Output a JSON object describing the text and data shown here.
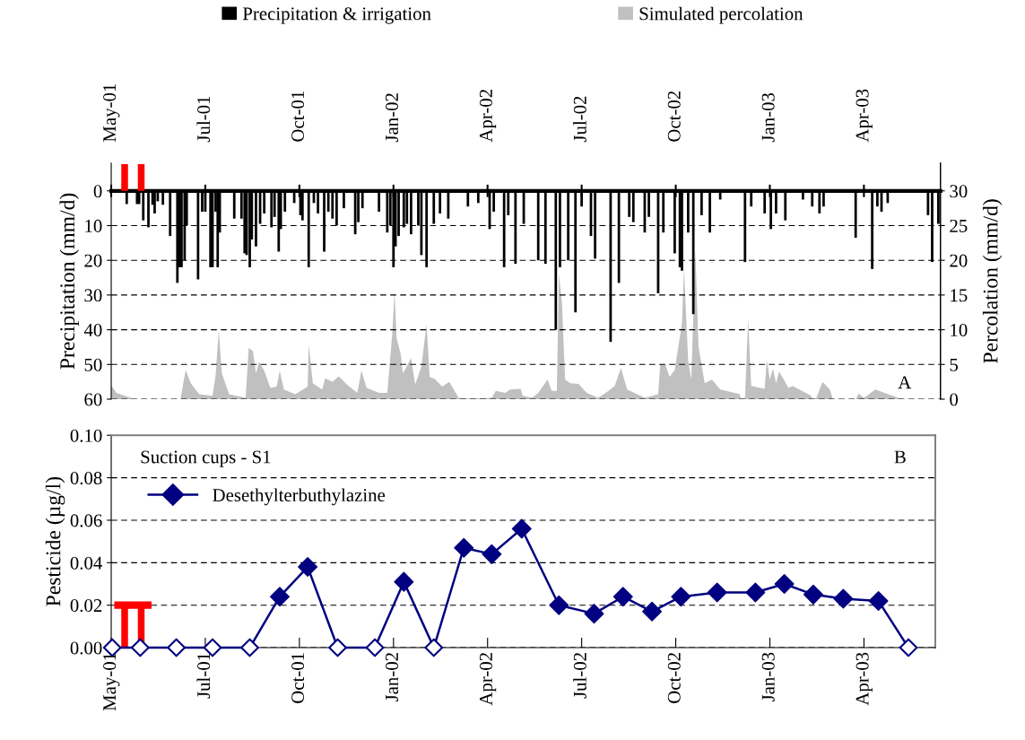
{
  "chart_data": [
    {
      "type": "bar",
      "ylabel": "Precipitation (mm/d)",
      "y2label": "Percolation (mm/d)",
      "annotations": [
        "A"
      ],
      "legend": "top",
      "grid": "y",
      "xlim": [
        "2001-05-01",
        "2003-07-12"
      ],
      "ylim": [
        60,
        -8
      ],
      "y2lim": [
        0,
        34
      ],
      "xticks": [
        {
          "value": "2001-05-01",
          "label": "May-01"
        },
        {
          "value": "2001-07-31",
          "label": "Jul-01"
        },
        {
          "value": "2001-10-30",
          "label": "Oct-01"
        },
        {
          "value": "2002-01-29",
          "label": "Jan-02"
        },
        {
          "value": "2002-04-30",
          "label": "Apr-02"
        },
        {
          "value": "2002-07-30",
          "label": "Jul-02"
        },
        {
          "value": "2002-10-29",
          "label": "Oct-02"
        },
        {
          "value": "2003-01-28",
          "label": "Jan-03"
        },
        {
          "value": "2003-04-29",
          "label": "Apr-03"
        }
      ],
      "yticks": [
        0,
        10,
        20,
        30,
        40,
        50,
        60
      ],
      "y2ticks": [
        0,
        5,
        10,
        15,
        20,
        25,
        30
      ],
      "series": [
        {
          "name": "Precipitation & irrigation",
          "color": "#000000",
          "x": [
            "2001-05-16",
            "2001-05-26",
            "2001-05-28",
            "2001-06-01",
            "2001-06-06",
            "2001-06-10",
            "2001-06-12",
            "2001-06-15",
            "2001-06-20",
            "2001-06-27",
            "2001-07-04",
            "2001-07-06",
            "2001-07-08",
            "2001-07-11",
            "2001-07-13",
            "2001-07-24",
            "2001-07-28",
            "2001-07-31",
            "2001-08-05",
            "2001-08-07",
            "2001-08-10",
            "2001-08-12",
            "2001-08-14",
            "2001-08-28",
            "2001-09-04",
            "2001-09-07",
            "2001-09-09",
            "2001-09-12",
            "2001-09-14",
            "2001-09-18",
            "2001-09-22",
            "2001-09-26",
            "2001-10-03",
            "2001-10-06",
            "2001-10-10",
            "2001-10-12",
            "2001-10-16",
            "2001-10-25",
            "2001-10-31",
            "2001-11-02",
            "2001-11-08",
            "2001-11-13",
            "2001-11-17",
            "2001-11-23",
            "2001-11-27",
            "2001-12-01",
            "2001-12-05",
            "2001-12-12",
            "2001-12-23",
            "2001-12-26",
            "2001-12-30",
            "2002-01-15",
            "2002-01-23",
            "2002-01-26",
            "2002-01-29",
            "2002-01-31",
            "2002-02-03",
            "2002-02-08",
            "2002-02-11",
            "2002-02-15",
            "2002-02-22",
            "2002-02-25",
            "2002-03-02",
            "2002-03-09",
            "2002-03-15",
            "2002-03-23",
            "2002-04-11",
            "2002-04-21",
            "2002-05-02",
            "2002-05-06",
            "2002-05-16",
            "2002-05-20",
            "2002-05-27",
            "2002-06-04",
            "2002-06-18",
            "2002-06-25",
            "2002-07-05",
            "2002-07-09",
            "2002-07-17",
            "2002-07-24",
            "2002-07-30",
            "2002-08-08",
            "2002-08-12",
            "2002-08-27",
            "2002-09-04",
            "2002-09-14",
            "2002-09-18",
            "2002-09-29",
            "2002-10-03",
            "2002-10-12",
            "2002-10-17",
            "2002-10-28",
            "2002-11-02",
            "2002-11-04",
            "2002-11-10",
            "2002-11-15",
            "2002-11-23",
            "2002-12-01",
            "2002-12-11",
            "2003-01-04",
            "2003-01-10",
            "2003-01-23",
            "2003-01-29",
            "2003-02-03",
            "2003-02-12",
            "2003-03-01",
            "2003-03-10",
            "2003-03-17",
            "2003-03-21",
            "2003-04-21",
            "2003-05-07",
            "2003-05-12",
            "2003-05-16",
            "2003-05-22",
            "2003-06-30",
            "2003-07-04",
            "2003-07-10"
          ],
          "values": [
            3.8,
            3.8,
            3.8,
            8.5,
            10.5,
            4,
            6.5,
            3,
            4,
            13,
            26.5,
            22,
            22,
            20,
            10,
            25.5,
            6,
            6,
            22,
            22,
            6,
            22,
            12,
            8,
            8,
            18,
            18.5,
            22,
            14,
            16,
            9.5,
            6.5,
            10.5,
            7.5,
            17.5,
            11,
            6,
            3.5,
            7,
            8.5,
            22,
            3.5,
            6.5,
            17.5,
            6,
            8,
            10,
            5,
            12.5,
            9,
            5,
            6,
            12,
            10,
            22,
            16,
            13,
            10.5,
            9.5,
            12.5,
            10,
            18.5,
            22,
            9.5,
            6.5,
            8,
            4.5,
            3.5,
            11,
            6,
            22,
            7,
            21,
            9.5,
            20,
            21,
            40,
            22,
            20,
            35,
            4.5,
            13,
            19.5,
            43.5,
            26.5,
            7.5,
            9,
            12,
            7.5,
            29.5,
            12,
            18,
            22,
            23,
            12,
            35.5,
            7,
            12,
            2.5,
            20.5,
            4.5,
            6.5,
            11,
            6.5,
            8.5,
            2.5,
            4.5,
            6.5,
            4.5,
            13.5,
            22.5,
            4.5,
            6,
            3.5,
            7,
            20.5,
            9.5
          ]
        },
        {
          "name": "Simulated percolation",
          "type": "area",
          "axis": "y2",
          "color": "#c0c0c0",
          "x": [
            "2001-05-01",
            "2001-05-06",
            "2001-05-20",
            "2001-05-22",
            "2001-07-07",
            "2001-07-12",
            "2001-07-17",
            "2001-07-25",
            "2001-08-07",
            "2001-08-10",
            "2001-08-13",
            "2001-08-16",
            "2001-08-23",
            "2001-09-08",
            "2001-09-11",
            "2001-09-15",
            "2001-09-18",
            "2001-09-21",
            "2001-09-26",
            "2001-10-02",
            "2001-10-08",
            "2001-10-11",
            "2001-10-15",
            "2001-10-26",
            "2001-11-07",
            "2001-11-08",
            "2001-11-12",
            "2001-11-21",
            "2001-11-24",
            "2001-12-01",
            "2001-12-07",
            "2001-12-15",
            "2001-12-25",
            "2001-12-29",
            "2002-01-03",
            "2002-01-15",
            "2002-01-23",
            "2002-01-28",
            "2002-01-30",
            "2002-02-01",
            "2002-02-05",
            "2002-02-07",
            "2002-02-09",
            "2002-02-15",
            "2002-02-19",
            "2002-02-25",
            "2002-03-02",
            "2002-03-05",
            "2002-03-10",
            "2002-03-17",
            "2002-03-24",
            "2002-04-02",
            "2002-04-11",
            "2002-05-04",
            "2002-05-08",
            "2002-05-17",
            "2002-05-22",
            "2002-06-01",
            "2002-06-03",
            "2002-06-12",
            "2002-06-18",
            "2002-06-27",
            "2002-07-01",
            "2002-07-06",
            "2002-07-08",
            "2002-07-11",
            "2002-07-14",
            "2002-07-19",
            "2002-07-27",
            "2002-08-04",
            "2002-08-15",
            "2002-08-25",
            "2002-08-31",
            "2002-09-06",
            "2002-09-12",
            "2002-09-29",
            "2002-10-12",
            "2002-10-14",
            "2002-10-19",
            "2002-10-23",
            "2002-10-28",
            "2002-11-04",
            "2002-11-06",
            "2002-11-10",
            "2002-11-13",
            "2002-11-17",
            "2002-11-20",
            "2002-11-26",
            "2002-12-03",
            "2002-12-11",
            "2002-12-25",
            "2002-12-30",
            "2002-12-31",
            "2003-01-04",
            "2003-01-07",
            "2003-01-10",
            "2003-01-23",
            "2003-01-25",
            "2003-01-28",
            "2003-01-31",
            "2003-02-03",
            "2003-02-06",
            "2003-02-15",
            "2003-02-19",
            "2003-03-09",
            "2003-03-10",
            "2003-03-14",
            "2003-03-20",
            "2003-03-27",
            "2003-03-30",
            "2003-04-21",
            "2003-04-24",
            "2003-04-29",
            "2003-05-10",
            "2003-06-03",
            "2003-06-07"
          ],
          "values": [
            2.0,
            0.9,
            0.2,
            0,
            0,
            4.2,
            2.3,
            0.7,
            0.5,
            3.5,
            9.9,
            3.7,
            0.7,
            0.2,
            7.4,
            6.9,
            3.7,
            5.4,
            4.1,
            1.6,
            1.8,
            4.1,
            1.4,
            0.7,
            1.8,
            7.9,
            2.3,
            1.4,
            3.0,
            2.5,
            3.3,
            2.1,
            0.9,
            4.1,
            1.6,
            0.9,
            0.9,
            9.7,
            15.5,
            8.8,
            6.5,
            3.7,
            4.2,
            5.9,
            2.1,
            4.7,
            10.8,
            3.2,
            2.9,
            1.8,
            2.5,
            0.2,
            0.1,
            0.2,
            1.2,
            0.9,
            1.4,
            1.5,
            0.5,
            0.2,
            0.9,
            2.8,
            1.2,
            1.2,
            18.1,
            13.7,
            2.8,
            2.3,
            2.2,
            0.9,
            0.2,
            1.2,
            1.9,
            4.5,
            1.4,
            0.2,
            0.7,
            5.0,
            5.0,
            3.2,
            4.2,
            10.9,
            18.8,
            5.6,
            2.8,
            21.4,
            7.6,
            2.3,
            2.8,
            1.4,
            0.9,
            0.7,
            0,
            0.2,
            11.6,
            1.9,
            1.5,
            5.7,
            2.8,
            4.4,
            2.3,
            4.0,
            1.6,
            1.9,
            0.5,
            0,
            0.2,
            2.5,
            1.4,
            0,
            0,
            0.8,
            0.2,
            1.4,
            0.1,
            0
          ]
        },
        {
          "color": "#ff0000",
          "x": [
            "2001-05-14",
            "2001-05-30"
          ],
          "values": [
            -7.7,
            -7.7
          ]
        }
      ]
    },
    {
      "type": "line",
      "ylabel": "Pesticide (µg/l)",
      "annotations": [
        "Suction cups - S1",
        "B"
      ],
      "legend": "top left",
      "grid": "y",
      "marker": "diamond",
      "xlim": [
        "2001-05-01",
        "2003-07-07"
      ],
      "ylim": [
        0,
        0.1
      ],
      "xticks": [
        {
          "value": "2001-05-01",
          "label": "May-01"
        },
        {
          "value": "2001-07-31",
          "label": "Jul-01"
        },
        {
          "value": "2001-10-30",
          "label": "Oct-01"
        },
        {
          "value": "2002-01-29",
          "label": "Jan-02"
        },
        {
          "value": "2002-04-30",
          "label": "Apr-02"
        },
        {
          "value": "2002-07-30",
          "label": "Jul-02"
        },
        {
          "value": "2002-10-29",
          "label": "Oct-02"
        },
        {
          "value": "2003-01-28",
          "label": "Jan-03"
        },
        {
          "value": "2003-04-29",
          "label": "Apr-03"
        }
      ],
      "yticks": [
        {
          "value": 0,
          "label": "0.00"
        },
        {
          "value": 0.02,
          "label": "0.02"
        },
        {
          "value": 0.04,
          "label": "0.04"
        },
        {
          "value": 0.06,
          "label": "0.06"
        },
        {
          "value": 0.08,
          "label": "0.08"
        },
        {
          "value": 0.1,
          "label": "0.10"
        }
      ],
      "series": [
        {
          "name": "Desethylterbuthylazine",
          "color": "#000080",
          "x": [
            "2001-05-02",
            "2001-05-29",
            "2001-07-03",
            "2001-08-07",
            "2001-09-12",
            "2001-10-11",
            "2001-11-07",
            "2001-12-06",
            "2002-01-11",
            "2002-02-08",
            "2002-03-09",
            "2002-04-07",
            "2002-05-04",
            "2002-06-02",
            "2002-07-08",
            "2002-08-11",
            "2002-09-08",
            "2002-10-06",
            "2002-11-03",
            "2002-12-08",
            "2003-01-14",
            "2003-02-11",
            "2003-03-11",
            "2003-04-09",
            "2003-05-13",
            "2003-06-11"
          ],
          "values": [
            0,
            0,
            0,
            0,
            0,
            0.024,
            0.038,
            0,
            0,
            0.031,
            0,
            0.047,
            0.044,
            0.056,
            0.02,
            0.016,
            0.024,
            0.017,
            0.024,
            0.026,
            0.026,
            0.03,
            0.025,
            0.023,
            0.022,
            0
          ]
        },
        {
          "type": "bar",
          "color": "#ff0000",
          "x": [
            "2001-05-14",
            "2001-05-30"
          ],
          "values": [
            0.02,
            0.02
          ]
        }
      ]
    }
  ]
}
